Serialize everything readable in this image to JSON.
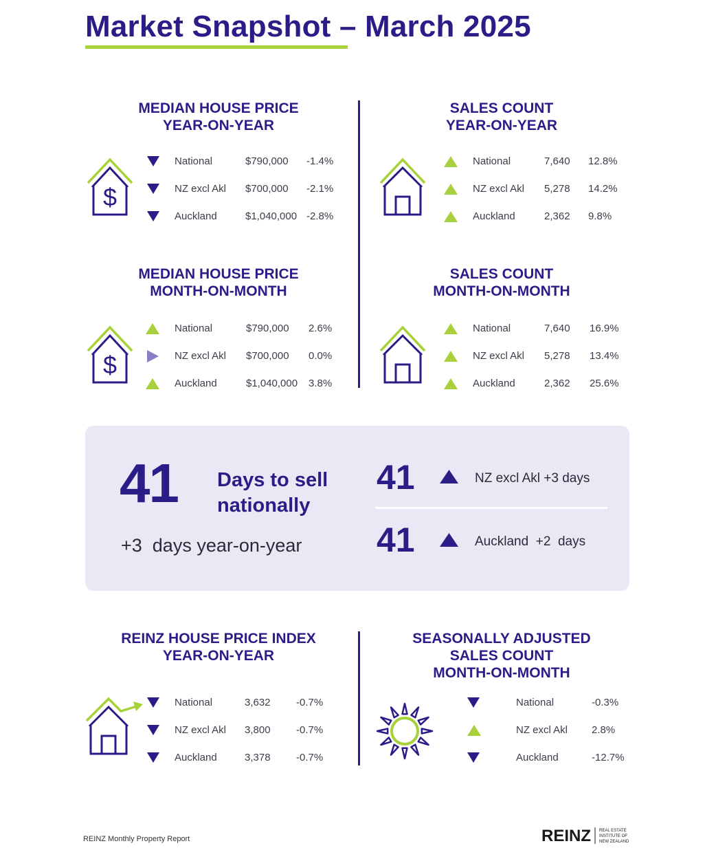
{
  "title": "Market Snapshot – March 2025",
  "sections": {
    "median_yoy": {
      "title_line1": "MEDIAN HOUSE PRICE",
      "title_line2": "YEAR-ON-YEAR",
      "rows": [
        {
          "region": "National",
          "value": "$790,000",
          "change": "-1.4%",
          "direction": "down"
        },
        {
          "region": "NZ excl Akl",
          "value": "$700,000",
          "change": "-2.1%",
          "direction": "down"
        },
        {
          "region": "Auckland",
          "value": "$1,040,000",
          "change": "-2.8%",
          "direction": "down"
        }
      ]
    },
    "sales_yoy": {
      "title_line1": "SALES COUNT",
      "title_line2": "YEAR-ON-YEAR",
      "rows": [
        {
          "region": "National",
          "value": "7,640",
          "change": "12.8%",
          "direction": "up"
        },
        {
          "region": "NZ excl Akl",
          "value": "5,278",
          "change": "14.2%",
          "direction": "up"
        },
        {
          "region": "Auckland",
          "value": "2,362",
          "change": "9.8%",
          "direction": "up"
        }
      ]
    },
    "median_mom": {
      "title_line1": "MEDIAN HOUSE PRICE",
      "title_line2": "MONTH-ON-MONTH",
      "rows": [
        {
          "region": "National",
          "value": "$790,000",
          "change": "2.6%",
          "direction": "up"
        },
        {
          "region": "NZ excl Akl",
          "value": "$700,000",
          "change": "0.0%",
          "direction": "flat"
        },
        {
          "region": "Auckland",
          "value": "$1,040,000",
          "change": "3.8%",
          "direction": "up"
        }
      ]
    },
    "sales_mom": {
      "title_line1": "SALES COUNT",
      "title_line2": "MONTH-ON-MONTH",
      "rows": [
        {
          "region": "National",
          "value": "7,640",
          "change": "16.9%",
          "direction": "up"
        },
        {
          "region": "NZ excl Akl",
          "value": "5,278",
          "change": "13.4%",
          "direction": "up"
        },
        {
          "region": "Auckland",
          "value": "2,362",
          "change": "25.6%",
          "direction": "up"
        }
      ]
    },
    "hpi_yoy": {
      "title_line1": "REINZ HOUSE PRICE INDEX",
      "title_line2": "YEAR-ON-YEAR",
      "rows": [
        {
          "region": "National",
          "value": "3,632",
          "change": "-0.7%",
          "direction": "down"
        },
        {
          "region": "NZ excl Akl",
          "value": "3,800",
          "change": "-0.7%",
          "direction": "down"
        },
        {
          "region": "Auckland",
          "value": "3,378",
          "change": "-0.7%",
          "direction": "down"
        }
      ]
    },
    "seasonal_mom": {
      "title_line1": "SEASONALLY ADJUSTED",
      "title_line2": "SALES COUNT",
      "title_line3": "MONTH-ON-MONTH",
      "rows": [
        {
          "region": "National",
          "change": "-0.3%",
          "direction": "down"
        },
        {
          "region": "NZ excl Akl",
          "change": "2.8%",
          "direction": "up"
        },
        {
          "region": "Auckland",
          "change": "-12.7%",
          "direction": "down"
        }
      ]
    }
  },
  "days_to_sell": {
    "national_value": "41",
    "label_line1": "Days to sell",
    "label_line2": "nationally",
    "yoy_text": "+3  days year-on-year",
    "nz_excl_akl_value": "41",
    "nz_excl_akl_label": "NZ excl Akl +3 days",
    "auckland_value": "41",
    "auckland_label": "Auckland  +2  days"
  },
  "footer": {
    "report_name": "REINZ Monthly Property Report",
    "logo_text": "REINZ",
    "logo_sub1": "REAL ESTATE",
    "logo_sub2": "INSTITUTE OF",
    "logo_sub3": "NEW ZEALAND"
  },
  "colors": {
    "navy": "#2b1d87",
    "green": "#a6d13a",
    "flat": "#8a7fc4",
    "panel": "#e9e8f4"
  }
}
